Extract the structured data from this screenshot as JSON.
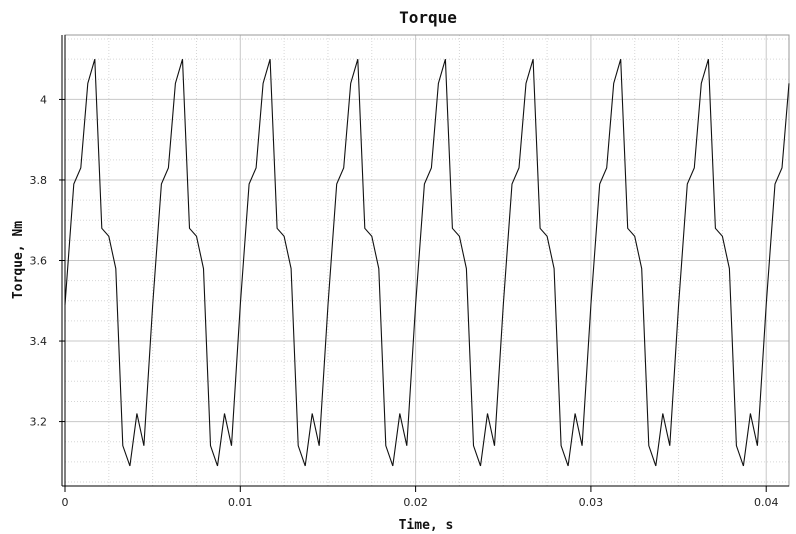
{
  "chart_data": {
    "type": "line",
    "title": "Torque",
    "xlabel": "Time, s",
    "ylabel": "Torque, Nm",
    "xlim": [
      0,
      0.0413
    ],
    "ylim": [
      3.04,
      4.16
    ],
    "x_ticks": [
      0,
      0.01,
      0.02,
      0.03,
      0.04
    ],
    "x_tick_labels": [
      "0",
      "0.01",
      "0.02",
      "0.03",
      "0.04"
    ],
    "y_ticks": [
      3.2,
      3.4,
      3.6,
      3.8,
      4.0
    ],
    "y_tick_labels": [
      "3.2",
      "3.4",
      "3.6",
      "3.8",
      "4"
    ],
    "grid": true,
    "period": 0.005,
    "series": [
      {
        "x": [
          0,
          0.0005,
          0.0009,
          0.0013,
          0.0017,
          0.0021,
          0.0025,
          0.0029,
          0.0033,
          0.0037,
          0.0041,
          0.0045,
          0.005,
          0.0055,
          0.0059,
          0.0063,
          0.0067,
          0.0071,
          0.0075,
          0.0079,
          0.0083,
          0.0087,
          0.0091,
          0.0095,
          0.01,
          0.0105,
          0.0109,
          0.0113,
          0.0117,
          0.0121,
          0.0125,
          0.0129,
          0.0133,
          0.0137,
          0.0141,
          0.0145,
          0.015,
          0.0155,
          0.0159,
          0.0163,
          0.0167,
          0.0171,
          0.0175,
          0.0179,
          0.0183,
          0.0187,
          0.0191,
          0.0195,
          0.02,
          0.0205,
          0.0209,
          0.0213,
          0.0217,
          0.0221,
          0.0225,
          0.0229,
          0.0233,
          0.0237,
          0.0241,
          0.0245,
          0.025,
          0.0255,
          0.0259,
          0.0263,
          0.0267,
          0.0271,
          0.0275,
          0.0279,
          0.0283,
          0.0287,
          0.0291,
          0.0295,
          0.03,
          0.0305,
          0.0309,
          0.0313,
          0.0317,
          0.0321,
          0.0325,
          0.0329,
          0.0333,
          0.0337,
          0.0341,
          0.0345,
          0.035,
          0.0355,
          0.0359,
          0.0363,
          0.0367,
          0.0371,
          0.0375,
          0.0379,
          0.0383,
          0.0387,
          0.0391,
          0.0395,
          0.04,
          0.0405,
          0.0409,
          0.0413
        ],
        "y": [
          3.49,
          3.79,
          3.83,
          4.04,
          4.1,
          3.68,
          3.66,
          3.58,
          3.14,
          3.09,
          3.22,
          3.14,
          3.49,
          3.79,
          3.83,
          4.04,
          4.1,
          3.68,
          3.66,
          3.58,
          3.14,
          3.09,
          3.22,
          3.14,
          3.49,
          3.79,
          3.83,
          4.04,
          4.1,
          3.68,
          3.66,
          3.58,
          3.14,
          3.09,
          3.22,
          3.14,
          3.49,
          3.79,
          3.83,
          4.04,
          4.1,
          3.68,
          3.66,
          3.58,
          3.14,
          3.09,
          3.22,
          3.14,
          3.49,
          3.79,
          3.83,
          4.04,
          4.1,
          3.68,
          3.66,
          3.58,
          3.14,
          3.09,
          3.22,
          3.14,
          3.49,
          3.79,
          3.83,
          4.04,
          4.1,
          3.68,
          3.66,
          3.58,
          3.14,
          3.09,
          3.22,
          3.14,
          3.49,
          3.79,
          3.83,
          4.04,
          4.1,
          3.68,
          3.66,
          3.58,
          3.14,
          3.09,
          3.22,
          3.14,
          3.49,
          3.79,
          3.83,
          4.04,
          4.1,
          3.68,
          3.66,
          3.58,
          3.14,
          3.09,
          3.22,
          3.14,
          3.49,
          3.79,
          3.83,
          4.04
        ],
        "color": "#111111"
      }
    ]
  }
}
